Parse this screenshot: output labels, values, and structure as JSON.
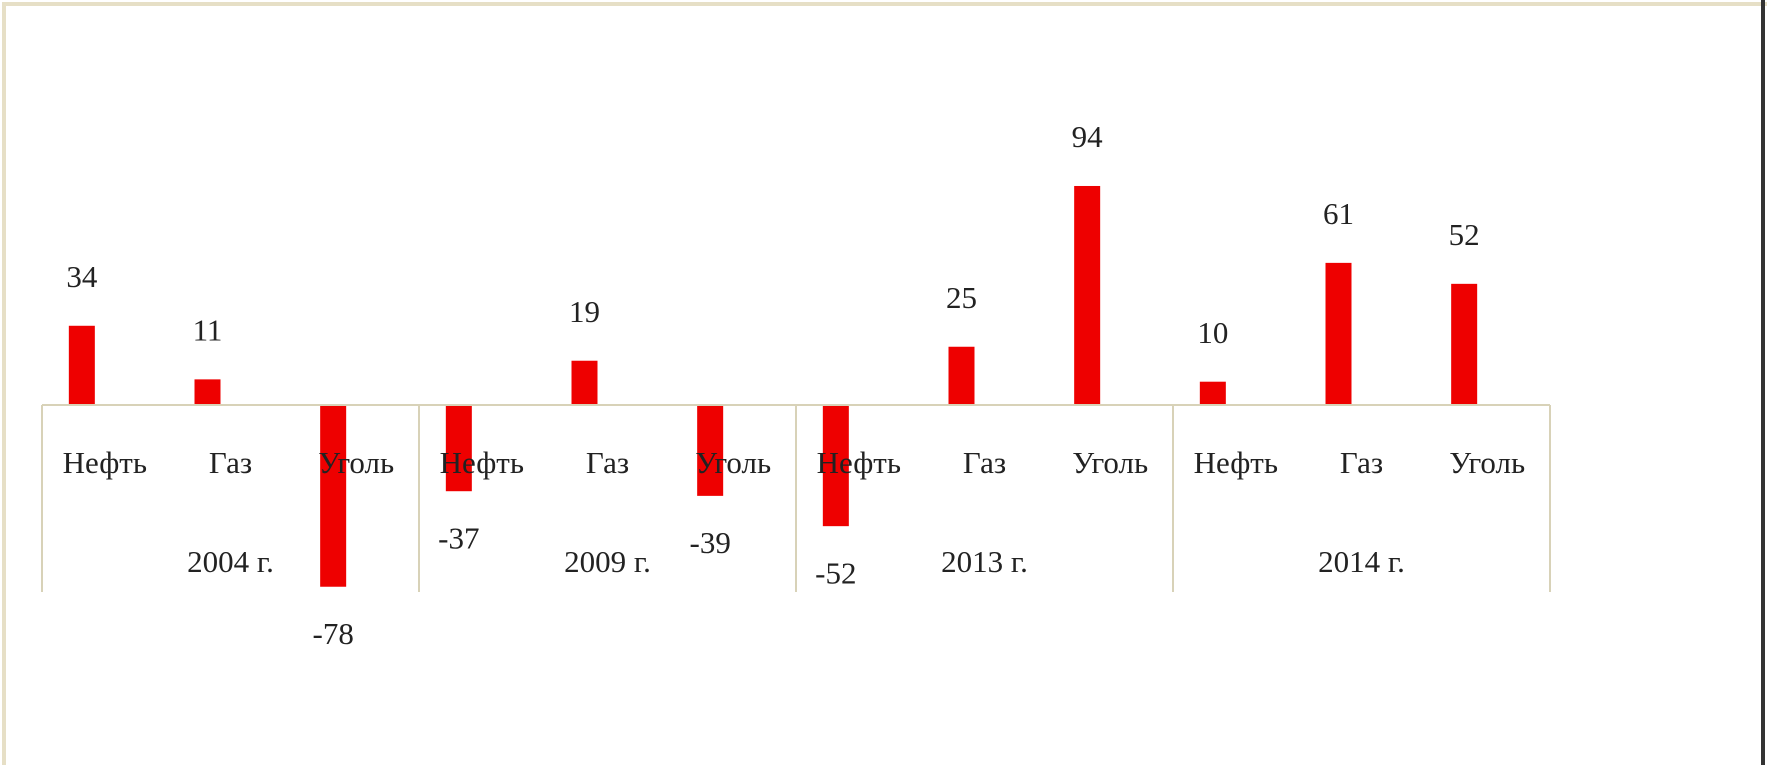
{
  "chart_data": {
    "type": "bar",
    "groups": [
      "2004 г.",
      "2009 г.",
      "2013 г.",
      "2014 г."
    ],
    "categories": [
      "Нефть",
      "Газ",
      "Уголь",
      "Нефть",
      "Газ",
      "Уголь",
      "Нефть",
      "Газ",
      "Уголь",
      "Нефть",
      "Газ",
      "Уголь"
    ],
    "values": [
      34,
      11,
      -78,
      -37,
      19,
      -39,
      -52,
      25,
      94,
      10,
      61,
      52
    ],
    "color": "#ee0000"
  }
}
